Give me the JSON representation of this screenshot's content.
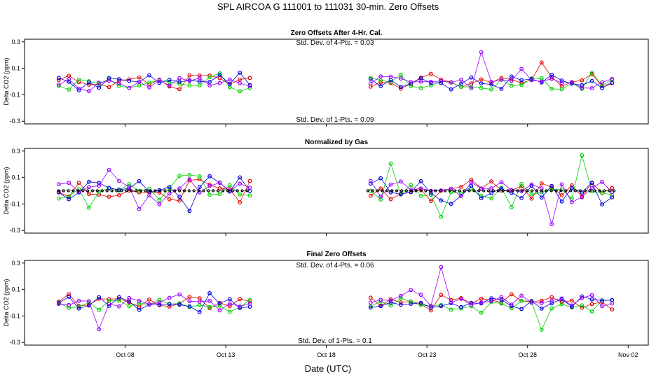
{
  "title": "SPL   AIRCOA G   111001 to 111031   30-min. Zero Offsets",
  "xlabel": "Date (UTC)",
  "colors": {
    "red": "#e00000",
    "green": "#00d000",
    "blue": "#0000e0",
    "purple": "#9900ff",
    "black": "#000000"
  },
  "chart_data": [
    {
      "type": "scatter",
      "title": "Zero Offsets After 4-Hr. Cal.",
      "ylabel": "Delta CO2 (ppm)",
      "ylim": [
        -0.32,
        0.32
      ],
      "yticks": [
        0.3,
        0.1,
        -0.1,
        -0.3
      ],
      "ytick_labels": [
        "0.3",
        "0.1",
        "-0.1",
        "-0.3"
      ],
      "xlim": [
        3.0,
        34.0
      ],
      "xticks": [
        8,
        13,
        18,
        23,
        28
      ],
      "xtick_labels": [
        "",
        "",
        "",
        "",
        ""
      ],
      "annotations": [
        "Std. Dev. of 4-Pts. =  0.03",
        "Std. Dev. of 1-Pts. =  0.09"
      ],
      "series": [
        {
          "name": "red",
          "color": "red",
          "values": []
        },
        {
          "name": "green",
          "color": "green",
          "values": []
        },
        {
          "name": "blue",
          "color": "blue",
          "values": []
        },
        {
          "name": "purple",
          "color": "purple",
          "values": []
        }
      ]
    },
    {
      "type": "scatter",
      "title": "Normalized by Gas",
      "ylabel": "Delta CO2 (ppm)",
      "ylim": [
        -0.32,
        0.32
      ],
      "yticks": [
        0.3,
        0.1,
        -0.1,
        -0.3
      ],
      "ytick_labels": [
        "0.3",
        "0.1",
        "-0.1",
        "-0.3"
      ],
      "xlim": [
        3.0,
        34.0
      ],
      "xticks": [
        8,
        13,
        18,
        23,
        28
      ],
      "xtick_labels": [
        "",
        "",
        "",
        "",
        ""
      ],
      "annotations": [],
      "series": [
        {
          "name": "red",
          "color": "red",
          "values": []
        },
        {
          "name": "green",
          "color": "green",
          "values": []
        },
        {
          "name": "blue",
          "color": "blue",
          "values": []
        },
        {
          "name": "purple",
          "color": "purple",
          "values": []
        },
        {
          "name": "mean",
          "color": "black",
          "values": []
        }
      ]
    },
    {
      "type": "scatter",
      "title": "Final Zero Offsets",
      "ylabel": "Delta CO2 (ppm)",
      "ylim": [
        -0.32,
        0.32
      ],
      "yticks": [
        0.3,
        0.1,
        -0.1,
        -0.3
      ],
      "ytick_labels": [
        "0.3",
        "0.1",
        "-0.1",
        "-0.3"
      ],
      "xlim": [
        3.0,
        34.0
      ],
      "xticks": [
        8,
        13,
        18,
        23,
        28,
        33
      ],
      "xtick_labels": [
        "Oct 08",
        "Oct 13",
        "Oct 18",
        "Oct 23",
        "Oct 28",
        "Nov 02"
      ],
      "annotations": [
        "Std. Dev. of 4-Pts. =  0.06",
        "Std. Dev. of 1-Pts. =  0.1"
      ],
      "series": [
        {
          "name": "red",
          "color": "red",
          "values": []
        },
        {
          "name": "green",
          "color": "green",
          "values": []
        },
        {
          "name": "blue",
          "color": "blue",
          "values": []
        },
        {
          "name": "purple",
          "color": "purple",
          "values": []
        }
      ]
    }
  ]
}
